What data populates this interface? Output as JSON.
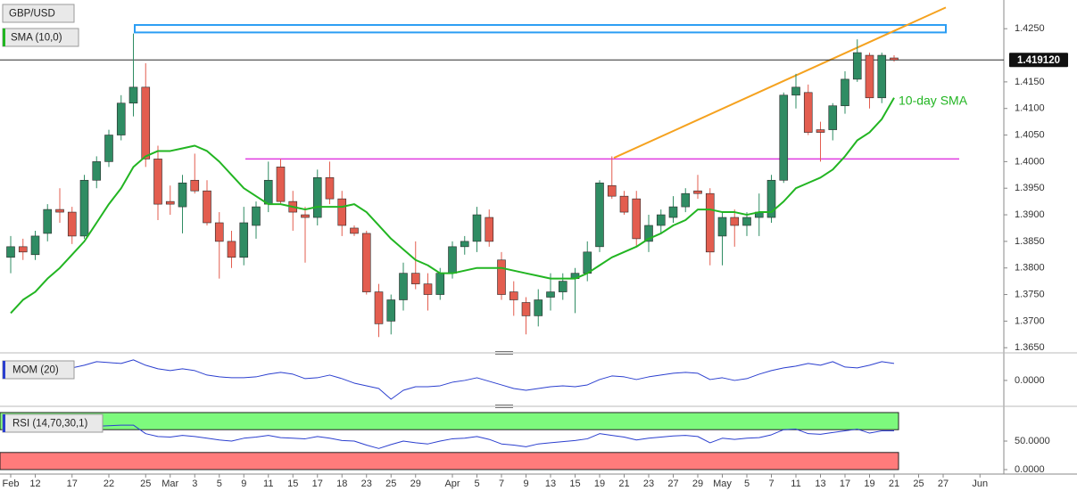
{
  "chart_data": [
    {
      "type": "candlestick",
      "title": "GBP/USD",
      "categories": [
        "Feb",
        null,
        "12",
        null,
        null,
        "17",
        null,
        null,
        "22",
        null,
        null,
        "25",
        null,
        "Mar",
        null,
        "3",
        null,
        "5",
        null,
        "9",
        null,
        "11",
        null,
        "15",
        null,
        "17",
        null,
        "18",
        null,
        "23",
        null,
        "25",
        null,
        "29",
        null,
        null,
        "Apr",
        null,
        "5",
        null,
        "7",
        null,
        "9",
        null,
        "13",
        null,
        "15",
        null,
        "19",
        null,
        "21",
        null,
        "23",
        null,
        "27",
        null,
        "29",
        null,
        "May",
        null,
        "5",
        null,
        "7",
        null,
        "11",
        null,
        "13",
        null,
        "17",
        null,
        "19",
        null,
        "21",
        null,
        "25",
        null,
        "27",
        null,
        null,
        "Jun"
      ],
      "up_color": "#2f8c63",
      "down_color": "#e35d4f",
      "open": [
        1.382,
        1.384,
        1.3825,
        1.3865,
        1.391,
        1.3905,
        1.386,
        1.3965,
        1.4,
        1.405,
        1.411,
        1.414,
        1.4005,
        1.3925,
        1.3915,
        1.3965,
        1.3945,
        1.3885,
        1.385,
        1.382,
        1.388,
        1.392,
        1.399,
        1.3925,
        1.39,
        1.3895,
        1.397,
        1.393,
        1.3875,
        1.3865,
        1.3755,
        1.37,
        1.374,
        1.379,
        1.377,
        1.375,
        1.379,
        1.384,
        1.385,
        1.3895,
        1.3815,
        1.3755,
        1.3735,
        1.371,
        1.3745,
        1.3755,
        1.378,
        1.379,
        1.384,
        1.3955,
        1.3935,
        1.393,
        1.385,
        1.388,
        1.3895,
        1.3915,
        1.3945,
        1.394,
        1.386,
        1.3895,
        1.388,
        1.3895,
        1.3895,
        1.3965,
        1.4125,
        1.413,
        1.406,
        1.406,
        1.4105,
        1.4155,
        1.42,
        1.412,
        1.4195,
        null,
        null,
        null,
        null,
        null,
        null,
        null
      ],
      "high": [
        1.386,
        1.3855,
        1.387,
        1.392,
        1.395,
        1.3915,
        1.3975,
        1.401,
        1.406,
        1.4125,
        1.4241,
        1.4185,
        1.403,
        1.3955,
        1.3975,
        1.4015,
        1.3965,
        1.3905,
        1.387,
        1.3915,
        1.3925,
        1.4,
        1.4005,
        1.3945,
        1.3915,
        1.3985,
        1.4,
        1.3945,
        1.388,
        1.387,
        1.377,
        1.375,
        1.381,
        1.385,
        1.379,
        1.38,
        1.385,
        1.386,
        1.3915,
        1.391,
        1.383,
        1.3775,
        1.3745,
        1.376,
        1.379,
        1.379,
        1.38,
        1.385,
        1.3965,
        1.401,
        1.3945,
        1.3945,
        1.39,
        1.391,
        1.3935,
        1.395,
        1.3975,
        1.395,
        1.3905,
        1.391,
        1.3905,
        1.394,
        1.3975,
        1.413,
        1.4165,
        1.4145,
        1.4075,
        1.411,
        1.417,
        1.423,
        1.4205,
        1.4205,
        1.42,
        null,
        null,
        null,
        null,
        null,
        null,
        null
      ],
      "low": [
        1.379,
        1.3815,
        1.3815,
        1.385,
        1.3885,
        1.3845,
        1.3855,
        1.395,
        1.399,
        1.404,
        1.4085,
        1.399,
        1.389,
        1.39,
        1.3865,
        1.394,
        1.388,
        1.378,
        1.38,
        1.3805,
        1.3855,
        1.3905,
        1.392,
        1.387,
        1.381,
        1.388,
        1.392,
        1.386,
        1.386,
        1.375,
        1.367,
        1.3675,
        1.372,
        1.376,
        1.372,
        1.374,
        1.378,
        1.3825,
        1.383,
        1.384,
        1.374,
        1.371,
        1.3675,
        1.369,
        1.372,
        1.374,
        1.3715,
        1.3775,
        1.383,
        1.393,
        1.39,
        1.384,
        1.383,
        1.3865,
        1.3885,
        1.3905,
        1.393,
        1.3805,
        1.3805,
        1.384,
        1.386,
        1.386,
        1.3885,
        1.396,
        1.41,
        1.405,
        1.4,
        1.404,
        1.409,
        1.415,
        1.41,
        1.411,
        1.4188,
        null,
        null,
        null,
        null,
        null,
        null,
        null
      ],
      "close": [
        1.384,
        1.383,
        1.386,
        1.391,
        1.3905,
        1.386,
        1.3965,
        1.4,
        1.405,
        1.411,
        1.414,
        1.4005,
        1.392,
        1.392,
        1.396,
        1.3945,
        1.3885,
        1.385,
        1.382,
        1.3885,
        1.3915,
        1.3965,
        1.3925,
        1.3905,
        1.3895,
        1.397,
        1.393,
        1.388,
        1.3865,
        1.3755,
        1.3695,
        1.374,
        1.379,
        1.377,
        1.375,
        1.379,
        1.384,
        1.385,
        1.39,
        1.385,
        1.375,
        1.374,
        1.371,
        1.374,
        1.3755,
        1.3775,
        1.379,
        1.383,
        1.396,
        1.3935,
        1.3905,
        1.3855,
        1.388,
        1.39,
        1.3915,
        1.394,
        1.394,
        1.383,
        1.3895,
        1.388,
        1.3895,
        1.3905,
        1.3965,
        1.4125,
        1.414,
        1.4055,
        1.4055,
        1.4105,
        1.4155,
        1.4205,
        1.412,
        1.42,
        1.41912,
        null,
        null,
        null,
        null,
        null,
        null,
        null
      ],
      "series": [
        {
          "name": "SMA (10,0)",
          "color": "#22b522",
          "values": [
            1.3715,
            1.374,
            1.3755,
            1.378,
            1.38,
            1.3825,
            1.385,
            1.3885,
            1.392,
            1.395,
            1.399,
            1.401,
            1.402,
            1.402,
            1.4025,
            1.403,
            1.402,
            1.4,
            1.3975,
            1.395,
            1.3935,
            1.392,
            1.392,
            1.3915,
            1.391,
            1.3915,
            1.3915,
            1.3915,
            1.392,
            1.3905,
            1.388,
            1.3855,
            1.3835,
            1.3815,
            1.3805,
            1.379,
            1.379,
            1.3795,
            1.38,
            1.38,
            1.38,
            1.3795,
            1.379,
            1.3785,
            1.378,
            1.378,
            1.378,
            1.379,
            1.3805,
            1.382,
            1.383,
            1.384,
            1.3855,
            1.3865,
            1.388,
            1.389,
            1.391,
            1.391,
            1.3905,
            1.3905,
            1.39,
            1.3905,
            1.3905,
            1.3925,
            1.395,
            1.396,
            1.397,
            1.3985,
            1.401,
            1.404,
            1.4055,
            1.408,
            1.412,
            null,
            null,
            null,
            null,
            null,
            null,
            null
          ]
        }
      ],
      "annotations": [
        {
          "text": "10-day SMA",
          "color": "#22b522"
        }
      ],
      "levels": [
        {
          "kind": "zone",
          "values": [
            1.4243,
            1.4257
          ],
          "color": "#2a9df4"
        },
        {
          "kind": "horizontal",
          "values": [
            1.4005
          ],
          "color": "#e03be0"
        },
        {
          "kind": "trend",
          "values": [
            1.4007,
            1.429
          ],
          "color": "#f5a21f"
        }
      ],
      "last_price": {
        "value": 1.41912,
        "label": "1.419120"
      },
      "ylim": [
        1.3647,
        1.4304
      ],
      "yticks": [
        {
          "value": 1.365,
          "label": "1.3650"
        },
        {
          "value": 1.37,
          "label": "1.3700"
        },
        {
          "value": 1.375,
          "label": "1.3750"
        },
        {
          "value": 1.38,
          "label": "1.3800"
        },
        {
          "value": 1.385,
          "label": "1.3850"
        },
        {
          "value": 1.39,
          "label": "1.3900"
        },
        {
          "value": 1.395,
          "label": "1.3950"
        },
        {
          "value": 1.4,
          "label": "1.4000"
        },
        {
          "value": 1.405,
          "label": "1.4050"
        },
        {
          "value": 1.41,
          "label": "1.4100"
        },
        {
          "value": 1.415,
          "label": "1.4150"
        },
        {
          "value": 1.425,
          "label": "1.4250"
        }
      ]
    },
    {
      "type": "line",
      "title": "MOM (20)",
      "color": "#2b3fcf",
      "values": [
        0.0176,
        0.0224,
        0.0192,
        0.0208,
        0.0176,
        0.0224,
        0.0272,
        0.0336,
        0.032,
        0.0304,
        0.0368,
        0.0272,
        0.0208,
        0.0176,
        0.0208,
        0.0176,
        0.0096,
        0.0064,
        0.0048,
        0.0048,
        0.0064,
        0.0112,
        0.0144,
        0.0112,
        0.0032,
        0.0048,
        0.0096,
        0.0032,
        -0.0048,
        -0.0096,
        -0.0144,
        -0.0336,
        -0.0176,
        -0.0112,
        -0.0112,
        -0.0096,
        -0.0032,
        0,
        0.0048,
        -0.0016,
        -0.008,
        -0.0144,
        -0.0176,
        -0.0144,
        -0.0112,
        -0.0096,
        -0.0112,
        -0.008,
        0.0016,
        0.008,
        0.0064,
        0.0016,
        0.0064,
        0.0096,
        0.0128,
        0.0144,
        0.0128,
        0.0016,
        0.0048,
        0,
        0.0032,
        0.0112,
        0.0176,
        0.0224,
        0.0256,
        0.0304,
        0.0272,
        0.0336,
        0.024,
        0.0224,
        0.0272,
        0.0336,
        0.0304,
        null,
        null,
        null,
        null,
        null,
        null,
        null
      ],
      "ylim": [
        -0.04,
        0.043
      ],
      "yticks": [
        {
          "value": 0,
          "label": "0.0000"
        }
      ]
    },
    {
      "type": "line",
      "title": "RSI (14,70,30,1)",
      "color": "#2b3fcf",
      "values": [
        72,
        74,
        73,
        75,
        74,
        70,
        74,
        76,
        77,
        78,
        78,
        63,
        58,
        57,
        60,
        58,
        55,
        52,
        50,
        55,
        57,
        60,
        56,
        55,
        54,
        58,
        55,
        51,
        50,
        43,
        37,
        44,
        50,
        47,
        45,
        50,
        54,
        55,
        58,
        53,
        45,
        43,
        40,
        45,
        47,
        49,
        51,
        54,
        63,
        60,
        57,
        52,
        55,
        57,
        59,
        60,
        58,
        47,
        55,
        53,
        55,
        56,
        61,
        70,
        71,
        63,
        62,
        65,
        68,
        71,
        64,
        68,
        68,
        null,
        null,
        null,
        null,
        null,
        null,
        null
      ],
      "bands": [
        {
          "range": [
            70,
            100
          ],
          "color": "#7dfa7d"
        },
        {
          "range": [
            0,
            30
          ],
          "color": "#ff7b7b"
        }
      ],
      "ylim": [
        0,
        100
      ],
      "yticks": [
        {
          "value": 0,
          "label": "0.0000"
        },
        {
          "value": 50,
          "label": "50.0000"
        }
      ]
    }
  ]
}
